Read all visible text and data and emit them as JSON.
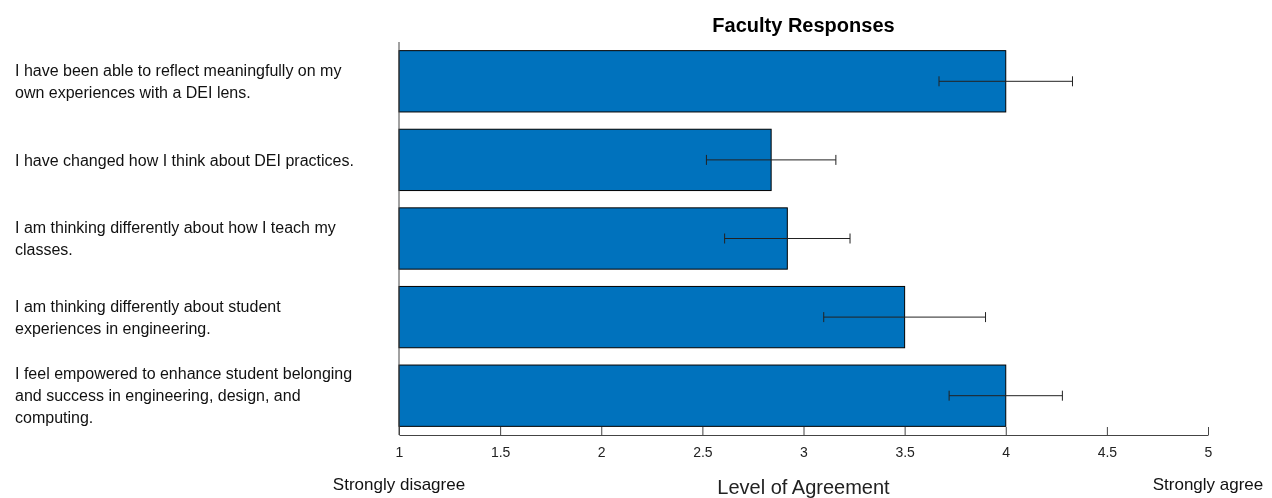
{
  "chart_data": {
    "type": "bar",
    "orientation": "horizontal",
    "title": "Faculty Responses",
    "xlabel": "Level of Agreement",
    "categories": [
      "I have been able to reflect meaningfully on my own experiences with a DEI lens.",
      "I have changed how I think about DEI practices.",
      "I am thinking differently about how I teach my classes.",
      "I am thinking differently about student experiences in engineering.",
      "I feel empowered to enhance student belonging and success in engineering, design, and computing."
    ],
    "values": [
      4.0,
      2.84,
      2.92,
      3.5,
      4.0
    ],
    "errors": [
      0.33,
      0.32,
      0.31,
      0.4,
      0.28
    ],
    "color": "#0072bd",
    "xlim": [
      1,
      5
    ],
    "xticks": [
      1,
      1.5,
      2,
      2.5,
      3,
      3.5,
      4,
      4.5,
      5
    ],
    "grid": false,
    "annotations": [
      "Strongly disagree",
      "Strongly agree"
    ]
  }
}
